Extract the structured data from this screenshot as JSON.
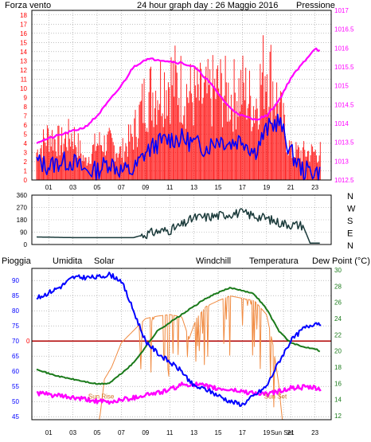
{
  "colors": {
    "frame": "#000000",
    "grid": "#9a9a9a",
    "wind_gust": "#ff0000",
    "wind_avg": "#0000ff",
    "pressure": "#ff00ff",
    "wind_dir": "#1a3a3a",
    "rain_label": "#ff0000",
    "humidity": "#0000ff",
    "solar": "#f08a40",
    "windchill": "#0a7a7a",
    "temperature": "#1a7a1a",
    "dewpoint": "#ff00ff",
    "zero_line": "#b00000",
    "sun_event": "#d07020"
  },
  "chart_data": [
    {
      "type": "line",
      "title": "24 hour graph day : 26 Maggio 2016",
      "left_axis_label": "Forza vento",
      "right_axis_label": "Pressione",
      "x_ticks": [
        "01",
        "03",
        "05",
        "07",
        "09",
        "11",
        "13",
        "15",
        "17",
        "19",
        "21",
        "23"
      ],
      "ylim_left": [
        0,
        18.5
      ],
      "y_ticks_left": [
        "0",
        "1",
        "2",
        "3",
        "4",
        "5",
        "6",
        "7",
        "8",
        "9",
        "10",
        "11",
        "12",
        "13",
        "14",
        "15",
        "16",
        "17",
        "18"
      ],
      "ylim_right": [
        1012.5,
        1017
      ],
      "y_ticks_right": [
        "1012.5",
        "1013",
        "1013.5",
        "1014",
        "1014.5",
        "1015",
        "1015.5",
        "1016",
        "1016.5",
        "1017"
      ],
      "series": [
        {
          "key": "gust",
          "axis": "left",
          "points": [
            [
              0,
              3
            ],
            [
              1,
              5
            ],
            [
              2,
              4
            ],
            [
              3,
              5
            ],
            [
              4,
              2
            ],
            [
              5,
              4
            ],
            [
              6,
              4
            ],
            [
              7,
              3
            ],
            [
              8,
              5
            ],
            [
              9,
              9
            ],
            [
              10,
              10
            ],
            [
              11,
              11
            ],
            [
              12,
              10
            ],
            [
              13,
              9
            ],
            [
              14,
              9
            ],
            [
              15,
              10
            ],
            [
              16,
              9
            ],
            [
              17,
              10
            ],
            [
              18,
              8
            ],
            [
              19,
              13
            ],
            [
              20,
              8
            ],
            [
              21,
              3
            ],
            [
              22,
              3
            ],
            [
              23,
              3
            ],
            [
              23.5,
              3
            ]
          ]
        },
        {
          "key": "average",
          "axis": "left",
          "points": [
            [
              0,
              2
            ],
            [
              1,
              1.5
            ],
            [
              2,
              2
            ],
            [
              3,
              2
            ],
            [
              4,
              1
            ],
            [
              5,
              1
            ],
            [
              6,
              2
            ],
            [
              7,
              1
            ],
            [
              8,
              1
            ],
            [
              9,
              3
            ],
            [
              10,
              4
            ],
            [
              11,
              4.5
            ],
            [
              12,
              4.5
            ],
            [
              13,
              4
            ],
            [
              14,
              3.5
            ],
            [
              15,
              4.5
            ],
            [
              16,
              4
            ],
            [
              17,
              4.5
            ],
            [
              18,
              3
            ],
            [
              19,
              5.5
            ],
            [
              20,
              6.5
            ],
            [
              21,
              3
            ],
            [
              22,
              1
            ],
            [
              23,
              1
            ],
            [
              23.5,
              0.5
            ]
          ]
        },
        {
          "key": "pressure",
          "axis": "right",
          "points": [
            [
              0,
              1013.5
            ],
            [
              1,
              1013.6
            ],
            [
              2,
              1013.7
            ],
            [
              3,
              1013.8
            ],
            [
              4,
              1013.9
            ],
            [
              5,
              1014.2
            ],
            [
              6,
              1014.6
            ],
            [
              7,
              1015.0
            ],
            [
              8,
              1015.5
            ],
            [
              9,
              1015.7
            ],
            [
              10,
              1015.7
            ],
            [
              11,
              1015.65
            ],
            [
              12,
              1015.6
            ],
            [
              13,
              1015.5
            ],
            [
              14,
              1015.2
            ],
            [
              15,
              1014.8
            ],
            [
              16,
              1014.4
            ],
            [
              17,
              1014.2
            ],
            [
              18,
              1014.1
            ],
            [
              19,
              1014.2
            ],
            [
              20,
              1014.6
            ],
            [
              21,
              1015.2
            ],
            [
              22,
              1015.6
            ],
            [
              23,
              1016.0
            ],
            [
              23.5,
              1015.9
            ]
          ]
        }
      ]
    },
    {
      "type": "line",
      "right_axis_labels": [
        "N",
        "W",
        "S",
        "E",
        "N"
      ],
      "ylim": [
        0,
        360
      ],
      "y_ticks": [
        "0",
        "90",
        "180",
        "270",
        "360"
      ],
      "series": [
        {
          "key": "direction",
          "points": [
            [
              0,
              55
            ],
            [
              3,
              50
            ],
            [
              6,
              50
            ],
            [
              8,
              50
            ],
            [
              9,
              75
            ],
            [
              10,
              95
            ],
            [
              11,
              105
            ],
            [
              12,
              140
            ],
            [
              13,
              195
            ],
            [
              14,
              200
            ],
            [
              15,
              210
            ],
            [
              16,
              225
            ],
            [
              17,
              230
            ],
            [
              18,
              210
            ],
            [
              19,
              190
            ],
            [
              20,
              160
            ],
            [
              21,
              145
            ],
            [
              22,
              140
            ],
            [
              22.6,
              10
            ],
            [
              23.5,
              10
            ]
          ]
        }
      ]
    },
    {
      "type": "line",
      "labels": {
        "rain": "Pioggia",
        "humidity": "Umidita",
        "solar": "Solar",
        "windchill": "Windchill",
        "temperature": "Temperatura",
        "dewpoint": "Dew Point (°C)"
      },
      "rain_zero_label": "0",
      "x_ticks": [
        "01",
        "03",
        "05",
        "07",
        "09",
        "11",
        "13",
        "15",
        "17",
        "19",
        "Sun Set",
        "21",
        "23"
      ],
      "ylim_left": [
        44,
        94
      ],
      "y_ticks_left": [
        "45",
        "50",
        "55",
        "60",
        "65",
        "70",
        "75",
        "80",
        "85",
        "90"
      ],
      "ylim_right": [
        11.5,
        30.2
      ],
      "y_ticks_right": [
        "12",
        "14",
        "16",
        "18",
        "20",
        "22",
        "24",
        "26",
        "28",
        "30"
      ],
      "annotations": [
        {
          "text": "Sun Rise",
          "x": 5.6
        },
        {
          "text": "Sun Set",
          "x": 20.0
        }
      ],
      "series": [
        {
          "key": "humidity",
          "axis": "left",
          "points": [
            [
              0,
              84
            ],
            [
              1,
              86
            ],
            [
              2,
              88
            ],
            [
              3,
              91
            ],
            [
              4,
              91
            ],
            [
              5,
              91
            ],
            [
              6,
              92
            ],
            [
              7,
              90
            ],
            [
              8,
              80
            ],
            [
              9,
              70
            ],
            [
              10,
              66
            ],
            [
              11,
              63
            ],
            [
              12,
              60
            ],
            [
              13,
              55
            ],
            [
              14,
              54
            ],
            [
              15,
              52
            ],
            [
              16,
              50
            ],
            [
              17,
              49
            ],
            [
              18,
              52
            ],
            [
              19,
              55
            ],
            [
              20,
              63
            ],
            [
              21,
              70
            ],
            [
              22,
              74
            ],
            [
              23,
              76
            ],
            [
              23.5,
              76
            ]
          ]
        },
        {
          "key": "temperature",
          "axis": "right",
          "points": [
            [
              0,
              17.8
            ],
            [
              1,
              17.2
            ],
            [
              2,
              16.8
            ],
            [
              3,
              16.5
            ],
            [
              4,
              16.2
            ],
            [
              5,
              15.9
            ],
            [
              6,
              16.0
            ],
            [
              7,
              17.2
            ],
            [
              8,
              18.5
            ],
            [
              9,
              20.5
            ],
            [
              10,
              22.5
            ],
            [
              11,
              23.5
            ],
            [
              12,
              24.5
            ],
            [
              13,
              25.5
            ],
            [
              14,
              26.5
            ],
            [
              15,
              27.2
            ],
            [
              16,
              27.8
            ],
            [
              17,
              27.5
            ],
            [
              18,
              27.0
            ],
            [
              19,
              25.2
            ],
            [
              20,
              22.5
            ],
            [
              21,
              21.0
            ],
            [
              22,
              20.5
            ],
            [
              23,
              20.3
            ],
            [
              23.5,
              19.9
            ]
          ]
        },
        {
          "key": "dewpoint",
          "axis": "right",
          "points": [
            [
              0,
              14.8
            ],
            [
              1,
              14.6
            ],
            [
              2,
              14.4
            ],
            [
              3,
              14.2
            ],
            [
              4,
              14.0
            ],
            [
              5,
              13.8
            ],
            [
              6,
              13.6
            ],
            [
              7,
              14.0
            ],
            [
              8,
              14.2
            ],
            [
              9,
              14.6
            ],
            [
              10,
              14.8
            ],
            [
              11,
              15.2
            ],
            [
              12,
              15.8
            ],
            [
              13,
              15.9
            ],
            [
              14,
              15.6
            ],
            [
              15,
              15.3
            ],
            [
              16,
              15.2
            ],
            [
              17,
              15.0
            ],
            [
              18,
              14.8
            ],
            [
              19,
              14.6
            ],
            [
              20,
              15.0
            ],
            [
              21,
              15.4
            ],
            [
              22,
              15.5
            ],
            [
              23,
              15.4
            ],
            [
              23.5,
              15.2
            ]
          ]
        },
        {
          "key": "solar",
          "axis": "right",
          "points": [
            [
              0,
              11.5
            ],
            [
              5.2,
              11.5
            ],
            [
              5.6,
              16.5
            ],
            [
              6.2,
              18.0
            ],
            [
              7.0,
              21.0
            ],
            [
              8.0,
              22.5
            ],
            [
              9.0,
              24.0
            ],
            [
              10,
              24.3
            ],
            [
              11,
              24.5
            ],
            [
              12,
              24.2
            ],
            [
              12.6,
              21.5
            ],
            [
              13.2,
              24.0
            ],
            [
              14,
              25.5
            ],
            [
              15,
              26.2
            ],
            [
              16,
              26.8
            ],
            [
              17,
              26.5
            ],
            [
              18,
              26.2
            ],
            [
              19,
              24.5
            ],
            [
              19.5,
              21.0
            ],
            [
              20.0,
              16.0
            ],
            [
              20.3,
              11.5
            ],
            [
              23.5,
              11.5
            ]
          ]
        }
      ]
    }
  ]
}
